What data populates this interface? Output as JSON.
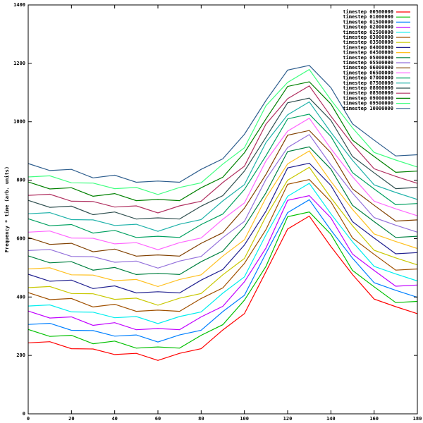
{
  "chart_data": {
    "type": "line",
    "ylabel": "Frequency * time (arb. units)",
    "x": [
      0,
      10,
      20,
      30,
      40,
      50,
      60,
      70,
      80,
      90,
      100,
      110,
      120,
      130,
      140,
      150,
      160,
      170,
      180
    ],
    "xlim": [
      0,
      180
    ],
    "xticks": [
      0,
      20,
      40,
      60,
      80,
      100,
      120,
      140,
      160,
      180
    ],
    "ylim": [
      0,
      1400
    ],
    "yticks": [
      0,
      200,
      400,
      600,
      800,
      1000,
      1200,
      1400
    ],
    "grid": false,
    "legend": "top-right",
    "series": [
      {
        "name": "timestep 00500000",
        "color": "#ff0000",
        "values": [
          243,
          247,
          223,
          222,
          203,
          207,
          183,
          207,
          223,
          287,
          343,
          487,
          633,
          677,
          573,
          477,
          393,
          367,
          343
        ]
      },
      {
        "name": "timestep 01000000",
        "color": "#00c000",
        "values": [
          289,
          265,
          269,
          240,
          249,
          225,
          229,
          225,
          269,
          305,
          389,
          505,
          675,
          691,
          615,
          491,
          435,
          381,
          385
        ]
      },
      {
        "name": "timestep 01500000",
        "color": "#0080ff",
        "values": [
          306,
          310,
          286,
          285,
          266,
          270,
          246,
          270,
          286,
          350,
          406,
          550,
          689,
          733,
          629,
          533,
          449,
          423,
          399
        ]
      },
      {
        "name": "timestep 02000000",
        "color": "#c000ff",
        "values": [
          352,
          328,
          332,
          303,
          312,
          288,
          292,
          288,
          332,
          368,
          452,
          568,
          731,
          747,
          671,
          547,
          491,
          437,
          441
        ]
      },
      {
        "name": "timestep 02500000",
        "color": "#00eeee",
        "values": [
          369,
          373,
          349,
          348,
          329,
          333,
          309,
          333,
          349,
          413,
          469,
          613,
          745,
          789,
          685,
          589,
          505,
          479,
          455
        ]
      },
      {
        "name": "timestep 03000000",
        "color": "#a05000",
        "values": [
          415,
          391,
          395,
          366,
          375,
          351,
          355,
          351,
          395,
          431,
          515,
          631,
          786,
          802,
          726,
          602,
          546,
          492,
          496
        ]
      },
      {
        "name": "timestep 03500000",
        "color": "#c8c800",
        "values": [
          432,
          436,
          412,
          411,
          392,
          396,
          372,
          396,
          412,
          476,
          532,
          676,
          800,
          844,
          740,
          644,
          560,
          534,
          510
        ]
      },
      {
        "name": "timestep 04000000",
        "color": "#202090",
        "values": [
          478,
          454,
          458,
          429,
          438,
          414,
          418,
          414,
          458,
          494,
          578,
          694,
          842,
          858,
          782,
          658,
          602,
          548,
          552
        ]
      },
      {
        "name": "timestep 04500000",
        "color": "#ffc020",
        "values": [
          496,
          500,
          476,
          475,
          456,
          460,
          436,
          460,
          476,
          540,
          596,
          740,
          856,
          900,
          796,
          700,
          616,
          590,
          566
        ]
      },
      {
        "name": "timestep 05000000",
        "color": "#008040",
        "values": [
          541,
          517,
          521,
          492,
          501,
          477,
          481,
          477,
          521,
          557,
          641,
          757,
          898,
          914,
          838,
          714,
          658,
          604,
          608
        ]
      },
      {
        "name": "timestep 05500000",
        "color": "#9370db",
        "values": [
          559,
          563,
          539,
          538,
          519,
          523,
          499,
          523,
          539,
          603,
          659,
          803,
          912,
          956,
          852,
          756,
          672,
          646,
          622
        ]
      },
      {
        "name": "timestep 06000000",
        "color": "#804000",
        "values": [
          604,
          580,
          584,
          555,
          564,
          540,
          544,
          540,
          584,
          620,
          704,
          820,
          954,
          970,
          894,
          770,
          714,
          660,
          664
        ]
      },
      {
        "name": "timestep 06500000",
        "color": "#ff66ff",
        "values": [
          622,
          626,
          602,
          601,
          582,
          586,
          562,
          586,
          602,
          666,
          722,
          866,
          968,
          1012,
          908,
          812,
          728,
          702,
          678
        ]
      },
      {
        "name": "timestep 07000000",
        "color": "#00a060",
        "values": [
          668,
          644,
          648,
          619,
          628,
          604,
          608,
          604,
          648,
          684,
          768,
          884,
          1010,
          1026,
          950,
          826,
          770,
          716,
          720
        ]
      },
      {
        "name": "timestep 07500000",
        "color": "#20b2aa",
        "values": [
          685,
          689,
          665,
          664,
          645,
          649,
          625,
          649,
          665,
          729,
          785,
          929,
          1024,
          1068,
          964,
          868,
          784,
          758,
          734
        ]
      },
      {
        "name": "timestep 08000000",
        "color": "#2f4f4f",
        "values": [
          731,
          707,
          711,
          682,
          691,
          667,
          671,
          667,
          711,
          747,
          831,
          947,
          1065,
          1081,
          1005,
          881,
          825,
          771,
          775
        ]
      },
      {
        "name": "timestep 08500000",
        "color": "#b03060",
        "values": [
          748,
          752,
          728,
          727,
          708,
          712,
          688,
          712,
          728,
          792,
          848,
          992,
          1079,
          1123,
          1019,
          923,
          839,
          813,
          789
        ]
      },
      {
        "name": "timestep 09000000",
        "color": "#008000",
        "values": [
          794,
          770,
          774,
          745,
          754,
          730,
          734,
          730,
          774,
          810,
          894,
          1010,
          1121,
          1137,
          1061,
          937,
          881,
          827,
          831
        ]
      },
      {
        "name": "timestep 09500000",
        "color": "#40ff80",
        "values": [
          811,
          815,
          791,
          790,
          771,
          775,
          751,
          775,
          791,
          855,
          911,
          1055,
          1135,
          1179,
          1075,
          979,
          895,
          869,
          845
        ]
      },
      {
        "name": "timestep 10000000",
        "color": "#2e5e8e",
        "values": [
          857,
          833,
          837,
          808,
          817,
          793,
          797,
          793,
          837,
          873,
          957,
          1073,
          1177,
          1193,
          1117,
          993,
          937,
          883,
          887
        ]
      }
    ]
  }
}
